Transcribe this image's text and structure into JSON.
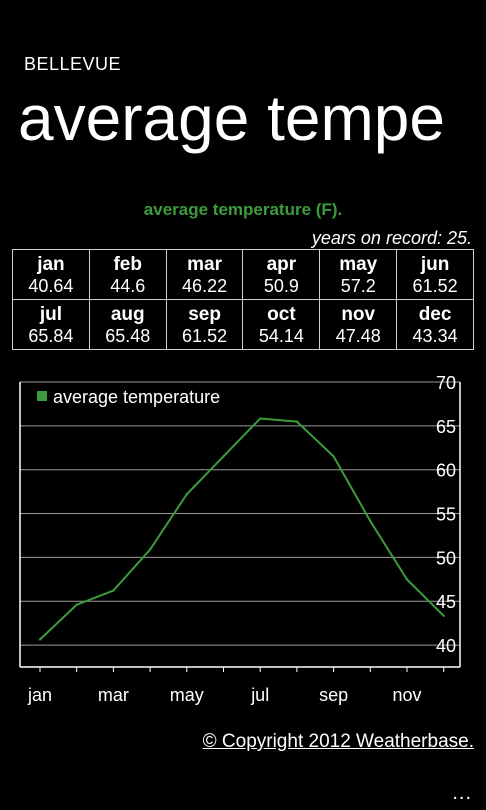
{
  "header": {
    "app_name": "BELLEVUE",
    "page_title": "average tempe"
  },
  "section_title": "average temperature (F).",
  "record_note": "years on record: 25.",
  "months": [
    {
      "label": "jan",
      "value": "40.64"
    },
    {
      "label": "feb",
      "value": "44.6"
    },
    {
      "label": "mar",
      "value": "46.22"
    },
    {
      "label": "apr",
      "value": "50.9"
    },
    {
      "label": "may",
      "value": "57.2"
    },
    {
      "label": "jun",
      "value": "61.52"
    },
    {
      "label": "jul",
      "value": "65.84"
    },
    {
      "label": "aug",
      "value": "65.48"
    },
    {
      "label": "sep",
      "value": "61.52"
    },
    {
      "label": "oct",
      "value": "54.14"
    },
    {
      "label": "nov",
      "value": "47.48"
    },
    {
      "label": "dec",
      "value": "43.34"
    }
  ],
  "chart_data": {
    "type": "line",
    "x": [
      "jan",
      "feb",
      "mar",
      "apr",
      "may",
      "jun",
      "jul",
      "aug",
      "sep",
      "oct",
      "nov",
      "dec"
    ],
    "x_tick_labels": [
      "jan",
      "mar",
      "may",
      "jul",
      "sep",
      "nov"
    ],
    "series": [
      {
        "name": "average temperature",
        "values": [
          40.64,
          44.6,
          46.22,
          50.9,
          57.2,
          61.52,
          65.84,
          65.48,
          61.52,
          54.14,
          47.48,
          43.34
        ]
      }
    ],
    "ylim": [
      37.5,
      70
    ],
    "yticks": [
      40,
      45,
      50,
      55,
      60,
      65,
      70
    ],
    "grid": true,
    "legend": "top-left",
    "colors": {
      "line": "#3b9c3b",
      "grid": "#9a9a9a",
      "axis": "#ffffff"
    }
  },
  "footer": {
    "copyright": "© Copyright 2012 Weatherbase.",
    "more": "..."
  }
}
